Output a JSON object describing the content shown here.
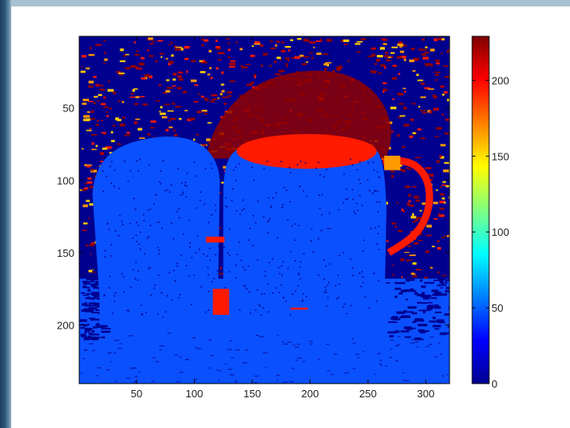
{
  "chart_data": {
    "type": "heatmap",
    "title": "",
    "xlabel": "",
    "ylabel": "",
    "image_size": [
      320,
      240
    ],
    "xlim": [
      0.5,
      320.5
    ],
    "ylim": [
      0.5,
      240.5
    ],
    "y_direction": "reverse",
    "x_ticks": [
      "50",
      "100",
      "150",
      "200",
      "250",
      "300"
    ],
    "x_tick_values": [
      50,
      100,
      150,
      200,
      250,
      300
    ],
    "y_ticks": [
      "50",
      "100",
      "150",
      "200"
    ],
    "y_tick_values": [
      50,
      100,
      150,
      200
    ],
    "colormap": "jet",
    "colorbar": {
      "range": [
        0,
        229
      ],
      "ticks": [
        "0",
        "50",
        "100",
        "150",
        "200"
      ],
      "tick_values": [
        0,
        50,
        100,
        150,
        200
      ],
      "placement": "right"
    },
    "regions": [
      {
        "name": "background-top",
        "approx_value": 215,
        "colors": [
          "#00008f",
          "#8f0000",
          "#d40000"
        ]
      },
      {
        "name": "cup-body",
        "approx_value": 45,
        "color": "#0a50ff"
      },
      {
        "name": "cup-rim",
        "approx_value": 210,
        "color": "#ff1a00"
      },
      {
        "name": "handle",
        "approx_value": 200,
        "color": "#e02000"
      },
      {
        "name": "table",
        "approx_value": 45,
        "color": "#0a50ff"
      }
    ]
  },
  "colors": {
    "dark_blue": "#00008f",
    "blue": "#0a50ff",
    "dark_red": "#8f0000",
    "red": "#ff1a00",
    "orange": "#ff9900"
  }
}
